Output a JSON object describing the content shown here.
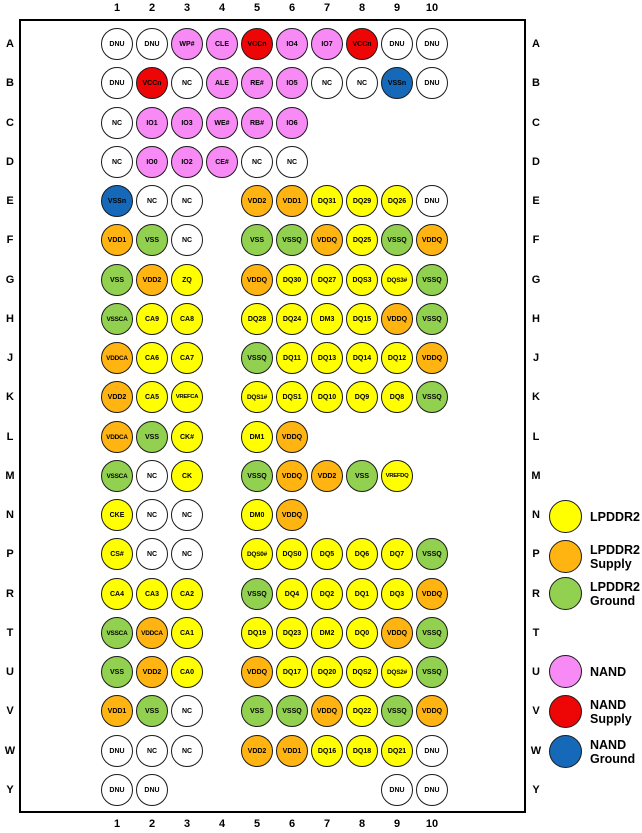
{
  "diagram": {
    "kind": "BGA package ballout / pinout diagram",
    "grid_columns": [
      "1",
      "2",
      "3",
      "4",
      "5",
      "6",
      "7",
      "8",
      "9",
      "10"
    ],
    "grid_rows": [
      "A",
      "B",
      "C",
      "D",
      "E",
      "F",
      "G",
      "H",
      "J",
      "K",
      "L",
      "M",
      "N",
      "P",
      "R",
      "T",
      "U",
      "V",
      "W",
      "Y"
    ]
  },
  "colors": {
    "lpddr2": "#FFFF00",
    "lpddr2_supply": "#FFB412",
    "lpddr2_ground": "#92D050",
    "nand": "#F78AF5",
    "nand_supply": "#EE0505",
    "nand_ground": "#1669B8",
    "unused": "#FFFFFF"
  },
  "legend": [
    {
      "lines": [
        "LPDDR2"
      ],
      "type": "lpddr2"
    },
    {
      "lines": [
        "LPDDR2",
        "Supply"
      ],
      "type": "lpddr2_supply"
    },
    {
      "lines": [
        "LPDDR2",
        "Ground"
      ],
      "type": "lpddr2_ground"
    },
    {
      "lines": [
        "NAND"
      ],
      "type": "nand"
    },
    {
      "lines": [
        "NAND",
        "Supply"
      ],
      "type": "nand_supply"
    },
    {
      "lines": [
        "NAND",
        "Ground"
      ],
      "type": "nand_ground"
    }
  ],
  "balls_format": [
    "row",
    "column",
    "label",
    "type"
  ],
  "balls": [
    [
      "A",
      1,
      "DNU",
      "unused"
    ],
    [
      "A",
      2,
      "DNU",
      "unused"
    ],
    [
      "A",
      3,
      "WP#",
      "nand"
    ],
    [
      "A",
      4,
      "CLE",
      "nand"
    ],
    [
      "A",
      5,
      "VCCn",
      "nand_supply"
    ],
    [
      "A",
      6,
      "IO4",
      "nand"
    ],
    [
      "A",
      7,
      "IO7",
      "nand"
    ],
    [
      "A",
      8,
      "VCCn",
      "nand_supply"
    ],
    [
      "A",
      9,
      "DNU",
      "unused"
    ],
    [
      "A",
      10,
      "DNU",
      "unused"
    ],
    [
      "B",
      1,
      "DNU",
      "unused"
    ],
    [
      "B",
      2,
      "VCCn",
      "nand_supply"
    ],
    [
      "B",
      3,
      "NC",
      "unused"
    ],
    [
      "B",
      4,
      "ALE",
      "nand"
    ],
    [
      "B",
      5,
      "RE#",
      "nand"
    ],
    [
      "B",
      6,
      "IO5",
      "nand"
    ],
    [
      "B",
      7,
      "NC",
      "unused"
    ],
    [
      "B",
      8,
      "NC",
      "unused"
    ],
    [
      "B",
      9,
      "VSSn",
      "nand_ground"
    ],
    [
      "B",
      10,
      "DNU",
      "unused"
    ],
    [
      "C",
      1,
      "NC",
      "unused"
    ],
    [
      "C",
      2,
      "IO1",
      "nand"
    ],
    [
      "C",
      3,
      "IO3",
      "nand"
    ],
    [
      "C",
      4,
      "WE#",
      "nand"
    ],
    [
      "C",
      5,
      "RB#",
      "nand"
    ],
    [
      "C",
      6,
      "IO6",
      "nand"
    ],
    [
      "D",
      1,
      "NC",
      "unused"
    ],
    [
      "D",
      2,
      "IO0",
      "nand"
    ],
    [
      "D",
      3,
      "IO2",
      "nand"
    ],
    [
      "D",
      4,
      "CE#",
      "nand"
    ],
    [
      "D",
      5,
      "NC",
      "unused"
    ],
    [
      "D",
      6,
      "NC",
      "unused"
    ],
    [
      "E",
      1,
      "VSSn",
      "nand_ground"
    ],
    [
      "E",
      2,
      "NC",
      "unused"
    ],
    [
      "E",
      3,
      "NC",
      "unused"
    ],
    [
      "E",
      5,
      "VDD2",
      "lpddr2_supply"
    ],
    [
      "E",
      6,
      "VDD1",
      "lpddr2_supply"
    ],
    [
      "E",
      7,
      "DQ31",
      "lpddr2"
    ],
    [
      "E",
      8,
      "DQ29",
      "lpddr2"
    ],
    [
      "E",
      9,
      "DQ26",
      "lpddr2"
    ],
    [
      "E",
      10,
      "DNU",
      "unused"
    ],
    [
      "F",
      1,
      "VDD1",
      "lpddr2_supply"
    ],
    [
      "F",
      2,
      "VSS",
      "lpddr2_ground"
    ],
    [
      "F",
      3,
      "NC",
      "unused"
    ],
    [
      "F",
      5,
      "VSS",
      "lpddr2_ground"
    ],
    [
      "F",
      6,
      "VSSQ",
      "lpddr2_ground"
    ],
    [
      "F",
      7,
      "VDDQ",
      "lpddr2_supply"
    ],
    [
      "F",
      8,
      "DQ25",
      "lpddr2"
    ],
    [
      "F",
      9,
      "VSSQ",
      "lpddr2_ground"
    ],
    [
      "F",
      10,
      "VDDQ",
      "lpddr2_supply"
    ],
    [
      "G",
      1,
      "VSS",
      "lpddr2_ground"
    ],
    [
      "G",
      2,
      "VDD2",
      "lpddr2_supply"
    ],
    [
      "G",
      3,
      "ZQ",
      "lpddr2"
    ],
    [
      "G",
      5,
      "VDDQ",
      "lpddr2_supply"
    ],
    [
      "G",
      6,
      "DQ30",
      "lpddr2"
    ],
    [
      "G",
      7,
      "DQ27",
      "lpddr2"
    ],
    [
      "G",
      8,
      "DQS3",
      "lpddr2"
    ],
    [
      "G",
      9,
      "DQS3#",
      "lpddr2"
    ],
    [
      "G",
      10,
      "VSSQ",
      "lpddr2_ground"
    ],
    [
      "H",
      1,
      "VSSCA",
      "lpddr2_ground"
    ],
    [
      "H",
      2,
      "CA9",
      "lpddr2"
    ],
    [
      "H",
      3,
      "CA8",
      "lpddr2"
    ],
    [
      "H",
      5,
      "DQ28",
      "lpddr2"
    ],
    [
      "H",
      6,
      "DQ24",
      "lpddr2"
    ],
    [
      "H",
      7,
      "DM3",
      "lpddr2"
    ],
    [
      "H",
      8,
      "DQ15",
      "lpddr2"
    ],
    [
      "H",
      9,
      "VDDQ",
      "lpddr2_supply"
    ],
    [
      "H",
      10,
      "VSSQ",
      "lpddr2_ground"
    ],
    [
      "J",
      1,
      "VDDCA",
      "lpddr2_supply"
    ],
    [
      "J",
      2,
      "CA6",
      "lpddr2"
    ],
    [
      "J",
      3,
      "CA7",
      "lpddr2"
    ],
    [
      "J",
      5,
      "VSSQ",
      "lpddr2_ground"
    ],
    [
      "J",
      6,
      "DQ11",
      "lpddr2"
    ],
    [
      "J",
      7,
      "DQ13",
      "lpddr2"
    ],
    [
      "J",
      8,
      "DQ14",
      "lpddr2"
    ],
    [
      "J",
      9,
      "DQ12",
      "lpddr2"
    ],
    [
      "J",
      10,
      "VDDQ",
      "lpddr2_supply"
    ],
    [
      "K",
      1,
      "VDD2",
      "lpddr2_supply"
    ],
    [
      "K",
      2,
      "CA5",
      "lpddr2"
    ],
    [
      "K",
      3,
      "VREFCA",
      "lpddr2"
    ],
    [
      "K",
      5,
      "DQS1#",
      "lpddr2"
    ],
    [
      "K",
      6,
      "DQS1",
      "lpddr2"
    ],
    [
      "K",
      7,
      "DQ10",
      "lpddr2"
    ],
    [
      "K",
      8,
      "DQ9",
      "lpddr2"
    ],
    [
      "K",
      9,
      "DQ8",
      "lpddr2"
    ],
    [
      "K",
      10,
      "VSSQ",
      "lpddr2_ground"
    ],
    [
      "L",
      1,
      "VDDCA",
      "lpddr2_supply"
    ],
    [
      "L",
      2,
      "VSS",
      "lpddr2_ground"
    ],
    [
      "L",
      3,
      "CK#",
      "lpddr2"
    ],
    [
      "L",
      5,
      "DM1",
      "lpddr2"
    ],
    [
      "L",
      6,
      "VDDQ",
      "lpddr2_supply"
    ],
    [
      "M",
      1,
      "VSSCA",
      "lpddr2_ground"
    ],
    [
      "M",
      2,
      "NC",
      "unused"
    ],
    [
      "M",
      3,
      "CK",
      "lpddr2"
    ],
    [
      "M",
      5,
      "VSSQ",
      "lpddr2_ground"
    ],
    [
      "M",
      6,
      "VDDQ",
      "lpddr2_supply"
    ],
    [
      "M",
      7,
      "VDD2",
      "lpddr2_supply"
    ],
    [
      "M",
      8,
      "VSS",
      "lpddr2_ground"
    ],
    [
      "M",
      9,
      "VREFDQ",
      "lpddr2"
    ],
    [
      "N",
      1,
      "CKE",
      "lpddr2"
    ],
    [
      "N",
      2,
      "NC",
      "unused"
    ],
    [
      "N",
      3,
      "NC",
      "unused"
    ],
    [
      "N",
      5,
      "DM0",
      "lpddr2"
    ],
    [
      "N",
      6,
      "VDDQ",
      "lpddr2_supply"
    ],
    [
      "P",
      1,
      "CS#",
      "lpddr2"
    ],
    [
      "P",
      2,
      "NC",
      "unused"
    ],
    [
      "P",
      3,
      "NC",
      "unused"
    ],
    [
      "P",
      5,
      "DQS0#",
      "lpddr2"
    ],
    [
      "P",
      6,
      "DQS0",
      "lpddr2"
    ],
    [
      "P",
      7,
      "DQ5",
      "lpddr2"
    ],
    [
      "P",
      8,
      "DQ6",
      "lpddr2"
    ],
    [
      "P",
      9,
      "DQ7",
      "lpddr2"
    ],
    [
      "P",
      10,
      "VSSQ",
      "lpddr2_ground"
    ],
    [
      "R",
      1,
      "CA4",
      "lpddr2"
    ],
    [
      "R",
      2,
      "CA3",
      "lpddr2"
    ],
    [
      "R",
      3,
      "CA2",
      "lpddr2"
    ],
    [
      "R",
      5,
      "VSSQ",
      "lpddr2_ground"
    ],
    [
      "R",
      6,
      "DQ4",
      "lpddr2"
    ],
    [
      "R",
      7,
      "DQ2",
      "lpddr2"
    ],
    [
      "R",
      8,
      "DQ1",
      "lpddr2"
    ],
    [
      "R",
      9,
      "DQ3",
      "lpddr2"
    ],
    [
      "R",
      10,
      "VDDQ",
      "lpddr2_supply"
    ],
    [
      "T",
      1,
      "VSSCA",
      "lpddr2_ground"
    ],
    [
      "T",
      2,
      "VDDCA",
      "lpddr2_supply"
    ],
    [
      "T",
      3,
      "CA1",
      "lpddr2"
    ],
    [
      "T",
      5,
      "DQ19",
      "lpddr2"
    ],
    [
      "T",
      6,
      "DQ23",
      "lpddr2"
    ],
    [
      "T",
      7,
      "DM2",
      "lpddr2"
    ],
    [
      "T",
      8,
      "DQ0",
      "lpddr2"
    ],
    [
      "T",
      9,
      "VDDQ",
      "lpddr2_supply"
    ],
    [
      "T",
      10,
      "VSSQ",
      "lpddr2_ground"
    ],
    [
      "U",
      1,
      "VSS",
      "lpddr2_ground"
    ],
    [
      "U",
      2,
      "VDD2",
      "lpddr2_supply"
    ],
    [
      "U",
      3,
      "CA0",
      "lpddr2"
    ],
    [
      "U",
      5,
      "VDDQ",
      "lpddr2_supply"
    ],
    [
      "U",
      6,
      "DQ17",
      "lpddr2"
    ],
    [
      "U",
      7,
      "DQ20",
      "lpddr2"
    ],
    [
      "U",
      8,
      "DQS2",
      "lpddr2"
    ],
    [
      "U",
      9,
      "DQS2#",
      "lpddr2"
    ],
    [
      "U",
      10,
      "VSSQ",
      "lpddr2_ground"
    ],
    [
      "V",
      1,
      "VDD1",
      "lpddr2_supply"
    ],
    [
      "V",
      2,
      "VSS",
      "lpddr2_ground"
    ],
    [
      "V",
      3,
      "NC",
      "unused"
    ],
    [
      "V",
      5,
      "VSS",
      "lpddr2_ground"
    ],
    [
      "V",
      6,
      "VSSQ",
      "lpddr2_ground"
    ],
    [
      "V",
      7,
      "VDDQ",
      "lpddr2_supply"
    ],
    [
      "V",
      8,
      "DQ22",
      "lpddr2"
    ],
    [
      "V",
      9,
      "VSSQ",
      "lpddr2_ground"
    ],
    [
      "V",
      10,
      "VDDQ",
      "lpddr2_supply"
    ],
    [
      "W",
      1,
      "DNU",
      "unused"
    ],
    [
      "W",
      2,
      "NC",
      "unused"
    ],
    [
      "W",
      3,
      "NC",
      "unused"
    ],
    [
      "W",
      5,
      "VDD2",
      "lpddr2_supply"
    ],
    [
      "W",
      6,
      "VDD1",
      "lpddr2_supply"
    ],
    [
      "W",
      7,
      "DQ16",
      "lpddr2"
    ],
    [
      "W",
      8,
      "DQ18",
      "lpddr2"
    ],
    [
      "W",
      9,
      "DQ21",
      "lpddr2"
    ],
    [
      "W",
      10,
      "DNU",
      "unused"
    ],
    [
      "Y",
      1,
      "DNU",
      "unused"
    ],
    [
      "Y",
      2,
      "DNU",
      "unused"
    ],
    [
      "Y",
      9,
      "DNU",
      "unused"
    ],
    [
      "Y",
      10,
      "DNU",
      "unused"
    ]
  ]
}
